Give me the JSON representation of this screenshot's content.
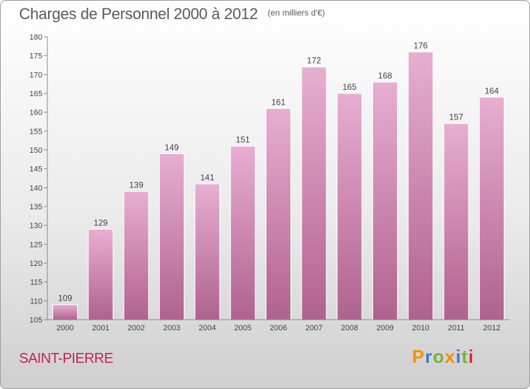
{
  "header": {
    "title": "Charges de Personnel 2000 à 2012",
    "unit": "(en milliers d'€)"
  },
  "footer": {
    "town": "SAINT-PIERRE",
    "brand": "Proxiti"
  },
  "colors": {
    "bar_top": "#e8aed2",
    "bar_bottom": "#b0628e",
    "axis_text": "#444444",
    "town": "#c0265a",
    "brand_letters": [
      "#f39200",
      "#3a7ec6",
      "#7bb03c",
      "#f39200",
      "#3a7ec6",
      "#7bb03c",
      "#e3262b"
    ]
  },
  "chart_data": {
    "type": "bar",
    "categories": [
      "2000",
      "2001",
      "2002",
      "2003",
      "2004",
      "2005",
      "2006",
      "2007",
      "2008",
      "2009",
      "2010",
      "2011",
      "2012"
    ],
    "values": [
      109,
      129,
      139,
      149,
      141,
      151,
      161,
      172,
      165,
      168,
      176,
      157,
      164
    ],
    "ylim": [
      105,
      180
    ],
    "yticks": [
      105,
      110,
      115,
      120,
      125,
      130,
      135,
      140,
      145,
      150,
      155,
      160,
      165,
      170,
      175,
      180
    ],
    "grid": false,
    "data_labels": true
  }
}
